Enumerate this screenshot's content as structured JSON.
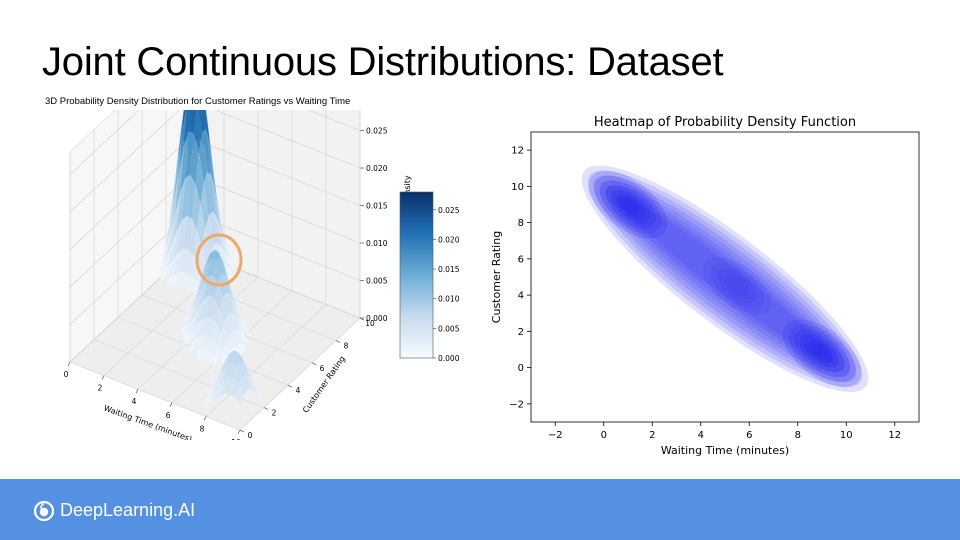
{
  "slide": {
    "title": "Joint Continuous Distributions: Dataset"
  },
  "footer": {
    "brand": "DeepLearning.AI",
    "logo_icon": "deeplearning-ai-logo-icon",
    "color": "#5491e3"
  },
  "chart_data": [
    {
      "type": "surface3d",
      "title": "3D Probability Density Distribution for Customer Ratings vs Waiting Time",
      "xlabel": "Waiting Time (minutes)",
      "ylabel": "Customer Rating",
      "zlabel": "Probability Density",
      "xticks": [
        "0",
        "2",
        "4",
        "6",
        "8",
        "10"
      ],
      "yticks": [
        "0",
        "2",
        "4",
        "6",
        "8",
        "10"
      ],
      "zticks": [
        "0.000",
        "0.005",
        "0.010",
        "0.015",
        "0.020",
        "0.025"
      ],
      "colorbar_ticks": [
        "0.000",
        "0.005",
        "0.010",
        "0.015",
        "0.020",
        "0.025"
      ],
      "colormap": "Blues",
      "zlim": [
        0,
        0.028
      ],
      "peaks": [
        {
          "x": 1,
          "y": 9,
          "density": 0.028
        },
        {
          "x": 5,
          "y": 5,
          "density": 0.012
        },
        {
          "x": 9,
          "y": 1,
          "density": 0.008
        }
      ],
      "highlighted_peaks": 2,
      "highlight_color": "#f0a868"
    },
    {
      "type": "heatmap",
      "title": "Heatmap of Probability Density Function",
      "xlabel": "Waiting Time (minutes)",
      "ylabel": "Customer Rating",
      "xticks": [
        "−2",
        "0",
        "2",
        "4",
        "6",
        "8",
        "10",
        "12"
      ],
      "yticks": [
        "−2",
        "0",
        "2",
        "4",
        "6",
        "8",
        "10",
        "12"
      ],
      "xlim": [
        -3,
        13
      ],
      "ylim": [
        -3,
        13
      ],
      "color": "#1a1aee",
      "modes": [
        {
          "x": 1,
          "y": 9,
          "level": "high"
        },
        {
          "x": 5.5,
          "y": 4.5,
          "level": "medium"
        },
        {
          "x": 9,
          "y": 0.8,
          "level": "high"
        }
      ]
    }
  ]
}
